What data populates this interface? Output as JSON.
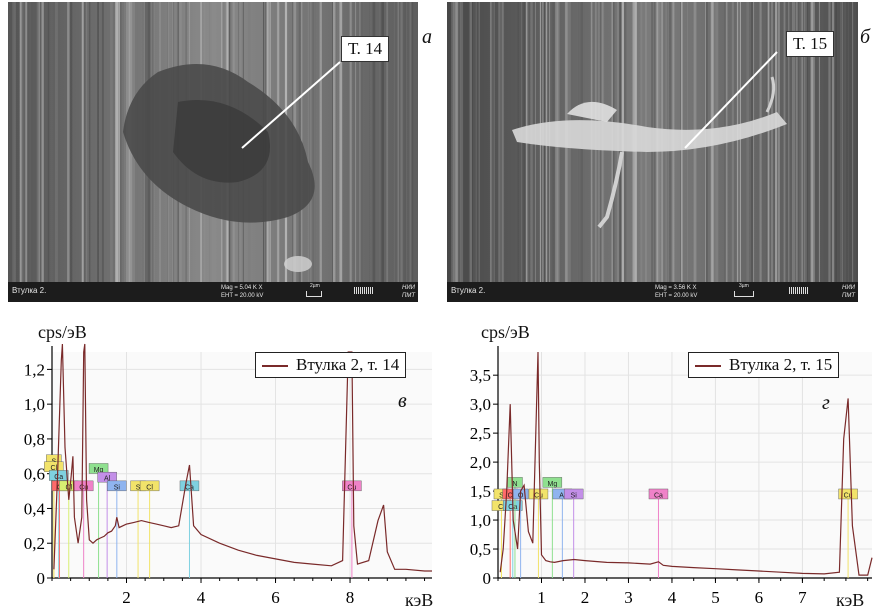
{
  "micrographs": [
    {
      "panel_label": "а",
      "callout": "Т. 14",
      "sample_label": "Втулка 2.",
      "mag_text": "Mag =  5.04 K X",
      "eht_text": "EHT = 20.00 kV",
      "scale_text": "2µm",
      "lab_line1": "НИИ",
      "lab_line2": "ПМТ"
    },
    {
      "panel_label": "б",
      "callout": "Т. 15",
      "sample_label": "Втулка 2.",
      "mag_text": "Mag =  3.56 K X",
      "eht_text": "EHT = 20.00 kV",
      "scale_text": "3µm",
      "lab_line1": "НИИ",
      "lab_line2": "ПМТ"
    }
  ],
  "chart_data": [
    {
      "type": "line",
      "panel_label": "в",
      "ylabel": "cps/эВ",
      "xlabel": "кэВ",
      "ylim": [
        0,
        1.3
      ],
      "xlim": [
        0,
        10.2
      ],
      "yticks": [
        "0",
        "0,2",
        "0,4",
        "0,6",
        "0,8",
        "1,0",
        "1,2"
      ],
      "ytick_values": [
        0,
        0.2,
        0.4,
        0.6,
        0.8,
        1.0,
        1.2
      ],
      "xticks": [
        "2",
        "4",
        "6",
        "8"
      ],
      "xtick_values": [
        2,
        4,
        6,
        8
      ],
      "legend_position": "top-right",
      "series": [
        {
          "name": "Втулка 2, т. 14",
          "color": "#7a2a2a",
          "x": [
            0.05,
            0.15,
            0.25,
            0.28,
            0.35,
            0.45,
            0.52,
            0.56,
            0.6,
            0.7,
            0.8,
            0.85,
            0.88,
            0.93,
            1.0,
            1.1,
            1.2,
            1.3,
            1.4,
            1.5,
            1.6,
            1.7,
            1.74,
            1.8,
            1.9,
            2.0,
            2.2,
            2.4,
            2.6,
            2.8,
            3.0,
            3.2,
            3.4,
            3.6,
            3.69,
            3.8,
            4.0,
            4.5,
            5.0,
            5.5,
            6.0,
            6.5,
            7.0,
            7.5,
            7.8,
            7.95,
            8.05,
            8.1,
            8.2,
            8.5,
            8.75,
            8.9,
            9.0,
            9.2,
            9.5,
            10.0,
            10.2
          ],
          "y": [
            0.05,
            0.6,
            1.25,
            1.4,
            0.75,
            0.45,
            0.6,
            0.7,
            0.35,
            0.2,
            0.35,
            1.3,
            1.4,
            0.45,
            0.22,
            0.2,
            0.22,
            0.23,
            0.24,
            0.26,
            0.27,
            0.3,
            0.35,
            0.29,
            0.3,
            0.31,
            0.32,
            0.33,
            0.32,
            0.31,
            0.3,
            0.29,
            0.3,
            0.55,
            0.65,
            0.3,
            0.25,
            0.2,
            0.16,
            0.13,
            0.11,
            0.09,
            0.08,
            0.07,
            0.1,
            1.3,
            1.3,
            0.3,
            0.08,
            0.1,
            0.33,
            0.42,
            0.15,
            0.05,
            0.05,
            0.04,
            0.04
          ]
        }
      ],
      "element_markers": [
        {
          "label": "S",
          "x": 0.05,
          "y": 0.68,
          "color": "#f2e36a"
        },
        {
          "label": "Cl",
          "x": 0.05,
          "y": 0.64,
          "color": "#f2e36a"
        },
        {
          "label": "Ca",
          "x": 0.18,
          "y": 0.59,
          "color": "#7fd1e0"
        },
        {
          "label": "C",
          "x": 0.2,
          "y": 0.53,
          "color": "#ff6a6a"
        },
        {
          "label": "Cl",
          "x": 0.45,
          "y": 0.53,
          "color": "#d8ef72"
        },
        {
          "label": "Cu",
          "x": 0.85,
          "y": 0.53,
          "color": "#ef82c8"
        },
        {
          "label": "Mg",
          "x": 1.25,
          "y": 0.63,
          "color": "#8fe08f"
        },
        {
          "label": "Al",
          "x": 1.48,
          "y": 0.58,
          "color": "#c38fe8"
        },
        {
          "label": "Si",
          "x": 1.74,
          "y": 0.53,
          "color": "#8fb4ef"
        },
        {
          "label": "S",
          "x": 2.31,
          "y": 0.53,
          "color": "#f2e36a"
        },
        {
          "label": "Cl",
          "x": 2.62,
          "y": 0.53,
          "color": "#f2e36a"
        },
        {
          "label": "Ca",
          "x": 3.69,
          "y": 0.53,
          "color": "#7fd1e0"
        },
        {
          "label": "Cu",
          "x": 8.05,
          "y": 0.53,
          "color": "#ef82c8"
        }
      ]
    },
    {
      "type": "line",
      "panel_label": "г",
      "ylabel": "cps/эВ",
      "xlabel": "кэВ",
      "ylim": [
        0,
        3.9
      ],
      "xlim": [
        0,
        8.6
      ],
      "yticks": [
        "0",
        "0,5",
        "1,0",
        "1,5",
        "2,0",
        "2,5",
        "3,0",
        "3,5"
      ],
      "ytick_values": [
        0,
        0.5,
        1.0,
        1.5,
        2.0,
        2.5,
        3.0,
        3.5
      ],
      "xticks": [
        "1",
        "2",
        "3",
        "4",
        "5",
        "6",
        "7"
      ],
      "xtick_values": [
        1,
        2,
        3,
        4,
        5,
        6,
        7
      ],
      "legend_position": "top-right",
      "series": [
        {
          "name": "Втулка 2, т. 15",
          "color": "#7a2a2a",
          "x": [
            0.05,
            0.12,
            0.2,
            0.28,
            0.35,
            0.45,
            0.52,
            0.6,
            0.7,
            0.8,
            0.85,
            0.92,
            0.95,
            1.0,
            1.1,
            1.2,
            1.3,
            1.5,
            1.75,
            2.0,
            2.5,
            3.0,
            3.5,
            3.69,
            3.8,
            4.0,
            4.5,
            5.0,
            5.5,
            6.0,
            6.5,
            7.0,
            7.5,
            7.85,
            7.95,
            8.05,
            8.15,
            8.3,
            8.5,
            8.6
          ],
          "y": [
            0.1,
            0.5,
            1.5,
            3.0,
            1.0,
            0.5,
            1.5,
            1.6,
            0.8,
            0.6,
            2.0,
            3.9,
            2.0,
            0.4,
            0.3,
            0.28,
            0.27,
            0.3,
            0.32,
            0.3,
            0.27,
            0.26,
            0.24,
            0.28,
            0.22,
            0.2,
            0.18,
            0.16,
            0.14,
            0.12,
            0.1,
            0.08,
            0.07,
            0.1,
            2.4,
            3.1,
            0.9,
            0.05,
            0.05,
            0.35
          ]
        }
      ],
      "element_markers": [
        {
          "label": "S",
          "x": 0.08,
          "y": 1.45,
          "color": "#f2e36a"
        },
        {
          "label": "Cl",
          "x": 0.08,
          "y": 1.25,
          "color": "#f2e36a"
        },
        {
          "label": "C",
          "x": 0.28,
          "y": 1.45,
          "color": "#ff6a6a"
        },
        {
          "label": "Ca",
          "x": 0.34,
          "y": 1.25,
          "color": "#7fd1e0"
        },
        {
          "label": "N",
          "x": 0.39,
          "y": 1.65,
          "color": "#8fe08f"
        },
        {
          "label": "O",
          "x": 0.52,
          "y": 1.45,
          "color": "#8fb4ef"
        },
        {
          "label": "Cu",
          "x": 0.93,
          "y": 1.45,
          "color": "#f2e36a"
        },
        {
          "label": "Mg",
          "x": 1.25,
          "y": 1.65,
          "color": "#8fe08f"
        },
        {
          "label": "Al",
          "x": 1.48,
          "y": 1.45,
          "color": "#8fb4ef"
        },
        {
          "label": "Si",
          "x": 1.74,
          "y": 1.45,
          "color": "#c38fe8"
        },
        {
          "label": "Ca",
          "x": 3.69,
          "y": 1.45,
          "color": "#ef82c8"
        },
        {
          "label": "Cu",
          "x": 8.05,
          "y": 1.45,
          "color": "#f2e36a"
        }
      ]
    }
  ]
}
